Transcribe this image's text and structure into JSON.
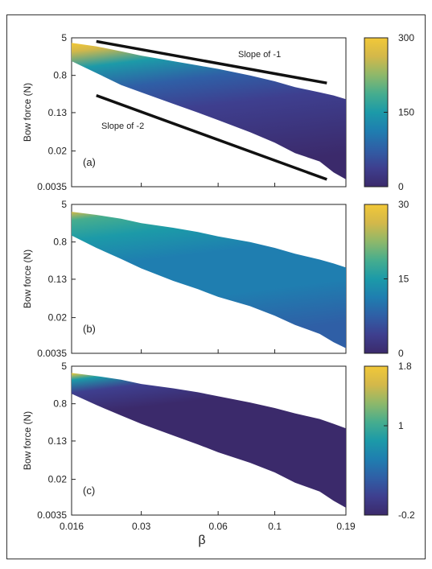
{
  "figure": {
    "shared_xlabel": "β",
    "x_ticks": [
      "0.016",
      "0.03",
      "0.06",
      "0.1",
      "0.19"
    ],
    "x_tick_values": [
      0.016,
      0.03,
      0.06,
      0.1,
      0.19
    ],
    "colormap": [
      "#3b2a6b",
      "#3e3f8f",
      "#2f5fa6",
      "#1f7eb0",
      "#1c9aa8",
      "#46ad8e",
      "#8eb86a",
      "#d3b84a",
      "#f2c838"
    ]
  },
  "chart_data": [
    {
      "type": "heatmap",
      "panel_label": "(a)",
      "ylabel": "Bow force (N)",
      "xscale": "log",
      "yscale": "log",
      "xlim": [
        0.016,
        0.19
      ],
      "ylim": [
        0.0035,
        5
      ],
      "y_ticks": [
        "5",
        "0.8",
        "0.13",
        "0.02",
        "0.0035"
      ],
      "y_tick_values": [
        5,
        0.8,
        0.13,
        0.02,
        0.0035
      ],
      "colorbar": {
        "min": 0,
        "max": 300,
        "ticks": [
          "300",
          "150",
          "0"
        ],
        "tick_values": [
          300,
          150,
          0
        ]
      },
      "annotations": [
        "Slope of -1",
        "Slope of -2"
      ],
      "reference_lines": [
        {
          "label": "Slope of -1",
          "from": [
            0.02,
            4.2
          ],
          "to": [
            0.16,
            0.55
          ]
        },
        {
          "label": "Slope of -2",
          "from": [
            0.02,
            0.3
          ],
          "to": [
            0.16,
            0.005
          ]
        }
      ],
      "region": {
        "x": [
          0.016,
          0.02,
          0.025,
          0.03,
          0.04,
          0.05,
          0.06,
          0.08,
          0.1,
          0.12,
          0.15,
          0.17,
          0.19
        ],
        "force_upper": [
          3.9,
          3.3,
          2.6,
          2.1,
          1.6,
          1.3,
          1.1,
          0.8,
          0.6,
          0.45,
          0.35,
          0.3,
          0.25
        ],
        "force_lower": [
          1.6,
          0.9,
          0.5,
          0.35,
          0.2,
          0.13,
          0.09,
          0.05,
          0.03,
          0.018,
          0.012,
          0.007,
          0.005
        ]
      },
      "value_trend": "high (~300) at low β and high force, decreasing to ~0-50 over most of the region"
    },
    {
      "type": "heatmap",
      "panel_label": "(b)",
      "ylabel": "Bow force (N)",
      "xscale": "log",
      "yscale": "log",
      "xlim": [
        0.016,
        0.19
      ],
      "ylim": [
        0.0035,
        5
      ],
      "y_ticks": [
        "5",
        "0.8",
        "0.13",
        "0.02",
        "0.0035"
      ],
      "y_tick_values": [
        5,
        0.8,
        0.13,
        0.02,
        0.0035
      ],
      "colorbar": {
        "min": 0,
        "max": 30,
        "ticks": [
          "30",
          "15",
          "0"
        ],
        "tick_values": [
          30,
          15,
          0
        ]
      },
      "region": {
        "x": [
          0.016,
          0.02,
          0.025,
          0.03,
          0.04,
          0.05,
          0.06,
          0.08,
          0.1,
          0.12,
          0.15,
          0.17,
          0.19
        ],
        "force_upper": [
          3.5,
          3.0,
          2.5,
          2.0,
          1.6,
          1.3,
          1.05,
          0.8,
          0.6,
          0.45,
          0.34,
          0.28,
          0.23
        ],
        "force_lower": [
          1.1,
          0.6,
          0.35,
          0.22,
          0.12,
          0.08,
          0.055,
          0.035,
          0.022,
          0.014,
          0.009,
          0.006,
          0.0045
        ]
      },
      "value_trend": "~15-25 near upper boundary, ~8-15 elsewhere"
    },
    {
      "type": "heatmap",
      "panel_label": "(c)",
      "ylabel": "Bow force (N)",
      "xscale": "log",
      "yscale": "log",
      "xlim": [
        0.016,
        0.19
      ],
      "ylim": [
        0.0035,
        5
      ],
      "y_ticks": [
        "5",
        "0.8",
        "0.13",
        "0.02",
        "0.0035"
      ],
      "y_tick_values": [
        5,
        0.8,
        0.13,
        0.02,
        0.0035
      ],
      "colorbar": {
        "min": -0.2,
        "max": 1.8,
        "ticks": [
          "1.8",
          "1",
          "-0.2"
        ],
        "tick_values": [
          1.8,
          1,
          -0.2
        ]
      },
      "region": {
        "x": [
          0.016,
          0.02,
          0.025,
          0.03,
          0.04,
          0.05,
          0.06,
          0.08,
          0.1,
          0.12,
          0.15,
          0.17,
          0.19
        ],
        "force_upper": [
          3.6,
          3.1,
          2.6,
          2.1,
          1.7,
          1.4,
          1.15,
          0.85,
          0.65,
          0.5,
          0.38,
          0.3,
          0.24
        ],
        "force_lower": [
          1.3,
          0.75,
          0.45,
          0.3,
          0.17,
          0.11,
          0.075,
          0.045,
          0.028,
          0.017,
          0.011,
          0.007,
          0.005
        ]
      },
      "value_trend": "~1.5-1.8 along the upper boundary, ~0 over most of the region"
    }
  ]
}
